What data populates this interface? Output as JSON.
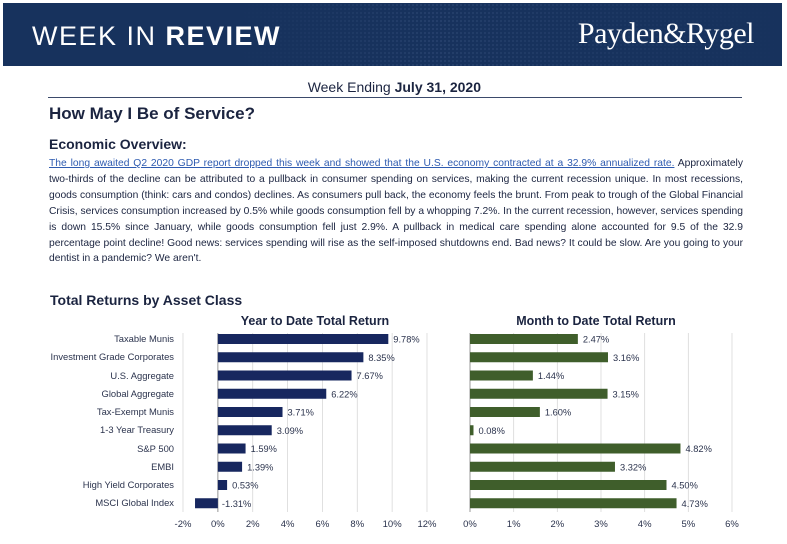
{
  "header": {
    "title_light": "WEEK IN ",
    "title_bold": "REVIEW",
    "logo": "Payden&Rygel"
  },
  "week": {
    "prefix": "Week Ending ",
    "date": "July 31, 2020"
  },
  "article": {
    "title": "How May I Be of Service?",
    "subhead": "Economic Overview:",
    "link_text": "The long awaited Q2 2020 GDP report dropped this week and showed that the U.S. economy contracted at a 32.9% annualized rate.",
    "body": " Approximately two-thirds of the decline can be attributed to a pullback in consumer spending on services, making the current recession unique. In most recessions, goods consumption (think: cars and condos) declines. As consumers pull back, the economy feels the brunt. From peak to trough of the Global Financial Crisis, services consumption increased by 0.5% while goods consumption fell by a whopping 7.2%. In the current recession, however, services spending is down 15.5% since January, while goods consumption fell just 2.9%. A pullback in medical care spending alone accounted for 9.5 of the 32.9 percentage point decline! Good news: services spending will rise as the self-imposed shutdowns end. Bad news? It could be slow. Are you going to your dentist in a pandemic? We aren't."
  },
  "section_title": "Total Returns by Asset Class",
  "colors": {
    "navy": "#17275f",
    "green": "#3f5e2b",
    "header_bg": "#17325d"
  },
  "chart_data": [
    {
      "type": "bar",
      "orientation": "horizontal",
      "title": "Year to Date Total Return",
      "categories": [
        "Taxable Munis",
        "Investment Grade Corporates",
        "U.S. Aggregate",
        "Global Aggregate",
        "Tax-Exempt Munis",
        "1-3 Year Treasury",
        "S&P 500",
        "EMBI",
        "High Yield Corporates",
        "MSCI Global Index"
      ],
      "values": [
        9.78,
        8.35,
        7.67,
        6.22,
        3.71,
        3.09,
        1.59,
        1.39,
        0.53,
        -1.31
      ],
      "labels": [
        "9.78%",
        "8.35%",
        "7.67%",
        "6.22%",
        "3.71%",
        "3.09%",
        "1.59%",
        "1.39%",
        "0.53%",
        "-1.31%"
      ],
      "xlim": [
        -2,
        12
      ],
      "ticks": [
        -2,
        0,
        2,
        4,
        6,
        8,
        10,
        12
      ],
      "tick_labels": [
        "-2%",
        "0%",
        "2%",
        "4%",
        "6%",
        "8%",
        "10%",
        "12%"
      ],
      "color": "#17275f"
    },
    {
      "type": "bar",
      "orientation": "horizontal",
      "title": "Month to Date Total Return",
      "categories": [
        "Taxable Munis",
        "Investment Grade Corporates",
        "U.S. Aggregate",
        "Global Aggregate",
        "Tax-Exempt Munis",
        "1-3 Year Treasury",
        "S&P 500",
        "EMBI",
        "High Yield Corporates",
        "MSCI Global Index"
      ],
      "values": [
        2.47,
        3.16,
        1.44,
        3.15,
        1.6,
        0.08,
        4.82,
        3.32,
        4.5,
        4.73
      ],
      "labels": [
        "2.47%",
        "3.16%",
        "1.44%",
        "3.15%",
        "1.60%",
        "0.08%",
        "4.82%",
        "3.32%",
        "4.50%",
        "4.73%"
      ],
      "xlim": [
        0,
        6
      ],
      "ticks": [
        0,
        1,
        2,
        3,
        4,
        5,
        6
      ],
      "tick_labels": [
        "0%",
        "1%",
        "2%",
        "3%",
        "4%",
        "5%",
        "6%"
      ],
      "color": "#3f5e2b"
    }
  ]
}
